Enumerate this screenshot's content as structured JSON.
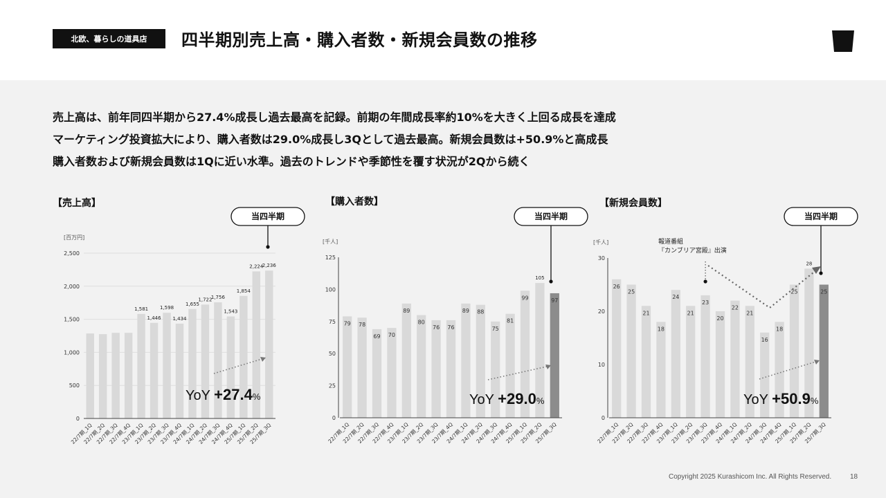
{
  "header": {
    "brand": "北欧、暮らしの道具店",
    "title": "四半期別売上高・購入者数・新規会員数の推移",
    "logo_icon": "cup-icon"
  },
  "summary": [
    "売上高は、前年同四半期から27.4%成長し過去最高を記録。前期の年間成長率約10%を大きく上回る成長を達成",
    "マーケティング投資拡大により、購入者数は29.0%成長し3Qとして過去最高。新規会員数は+50.9%と高成長",
    "購入者数および新規会員数は1Qに近い水準。過去のトレンドや季節性を覆す状況が2Qから続く"
  ],
  "callout_label": "当四半期",
  "yoy_prefix": "YoY",
  "colors": {
    "bar": "#d9d9d9",
    "current_bar": "#8c8c8c",
    "text": "#111111"
  },
  "chart_data": [
    {
      "type": "bar",
      "title": "【売上高】",
      "unit_label": "[百万円]",
      "categories": [
        "22/7期_1Q",
        "22/7期_2Q",
        "22/7期_3Q",
        "22/7期_4Q",
        "23/7期_1Q",
        "23/7期_2Q",
        "23/7期_3Q",
        "23/7期_4Q",
        "24/7期_1Q",
        "24/7期_2Q",
        "24/7期_3Q",
        "24/7期_4Q",
        "25/7期_1Q",
        "25/7期_2Q",
        "25/7期_3Q"
      ],
      "values": [
        1285,
        1275,
        1295,
        1295,
        1581,
        1446,
        1598,
        1434,
        1655,
        1722,
        1756,
        1543,
        1854,
        2224,
        2236
      ],
      "value_labels": [
        "",
        "",
        "",
        "",
        "1,581",
        "1,446",
        "1,598",
        "1,434",
        "1,655",
        "1,722",
        "1,756",
        "1,543",
        "1,854",
        "2,224",
        "2,236"
      ],
      "ylim": [
        0,
        2500
      ],
      "yticks": [
        0,
        500,
        1000,
        1500,
        2000,
        2500
      ],
      "ytick_labels": [
        "0",
        "500",
        "1,000",
        "1,500",
        "2,000",
        "2,500"
      ],
      "grid": true,
      "yoy_value": "+27.4",
      "yoy_unit": "%"
    },
    {
      "type": "bar",
      "title": "【購入者数】",
      "unit_label": "[千人]",
      "categories": [
        "22/7期_1Q",
        "22/7期_2Q",
        "22/7期_3Q",
        "22/7期_4Q",
        "23/7期_1Q",
        "23/7期_2Q",
        "23/7期_3Q",
        "23/7期_4Q",
        "24/7期_1Q",
        "24/7期_2Q",
        "24/7期_3Q",
        "24/7期_4Q",
        "25/7期_1Q",
        "25/7期_2Q",
        "25/7期_3Q"
      ],
      "values": [
        79,
        78,
        69,
        70,
        89,
        80,
        76,
        76,
        89,
        88,
        75,
        81,
        99,
        105,
        97
      ],
      "value_labels": [
        "79",
        "78",
        "69",
        "70",
        "89",
        "80",
        "76",
        "76",
        "89",
        "88",
        "75",
        "81",
        "99",
        "105",
        "97"
      ],
      "ylim": [
        0,
        125
      ],
      "yticks": [
        0,
        25,
        50,
        75,
        100,
        125
      ],
      "ytick_labels": [
        "0",
        "25",
        "50",
        "75",
        "100",
        "125"
      ],
      "grid": false,
      "yoy_value": "+29.0",
      "yoy_unit": "%"
    },
    {
      "type": "bar",
      "title": "【新規会員数】",
      "unit_label": "[千人]",
      "categories": [
        "22/7期_1Q",
        "22/7期_2Q",
        "22/7期_3Q",
        "22/7期_4Q",
        "23/7期_1Q",
        "23/7期_2Q",
        "23/7期_3Q",
        "23/7期_4Q",
        "24/7期_1Q",
        "24/7期_2Q",
        "24/7期_3Q",
        "24/7期_4Q",
        "25/7期_1Q",
        "25/7期_2Q",
        "25/7期_3Q"
      ],
      "values": [
        26,
        25,
        21,
        18,
        24,
        21,
        23,
        20,
        22,
        21,
        16,
        18,
        25,
        28,
        25
      ],
      "value_labels": [
        "26",
        "25",
        "21",
        "18",
        "24",
        "21",
        "23",
        "20",
        "22",
        "21",
        "16",
        "18",
        "25",
        "28",
        "25"
      ],
      "ylim": [
        0,
        30
      ],
      "yticks": [
        0,
        10,
        20,
        30
      ],
      "ytick_labels": [
        "0",
        "10",
        "20",
        "30"
      ],
      "grid": false,
      "yoy_value": "+50.9",
      "yoy_unit": "%",
      "annotation": [
        "報道番組",
        "『カンブリア宮殿』出演"
      ]
    }
  ],
  "footer": {
    "copyright": "Copyright 2025 Kurashicom Inc. All Rights Reserved.",
    "page_number": "18"
  }
}
